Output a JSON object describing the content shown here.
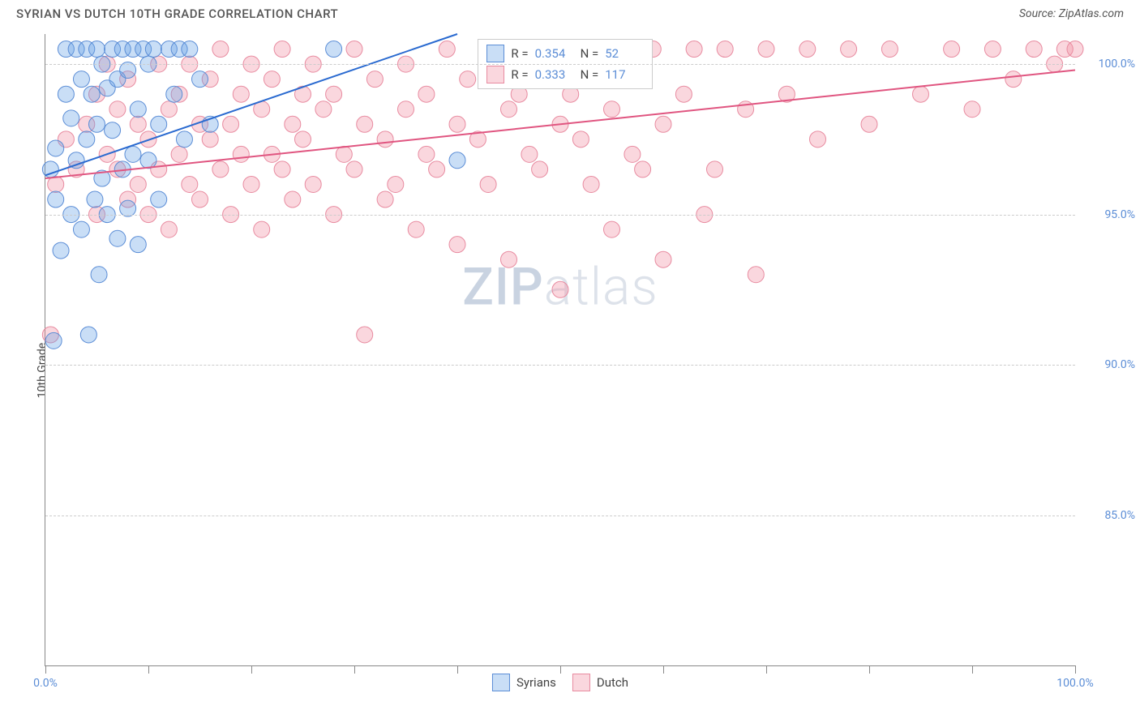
{
  "header": {
    "title": "SYRIAN VS DUTCH 10TH GRADE CORRELATION CHART",
    "source": "Source: ZipAtlas.com"
  },
  "watermark": {
    "zip": "ZIP",
    "atlas": "atlas"
  },
  "chart": {
    "type": "scatter",
    "ylabel": "10th Grade",
    "xlim": [
      0,
      100
    ],
    "ylim": [
      80,
      101
    ],
    "y_ticks": [
      85,
      90,
      95,
      100
    ],
    "y_tick_labels": [
      "85.0%",
      "90.0%",
      "95.0%",
      "100.0%"
    ],
    "x_tick_positions": [
      0,
      10,
      20,
      30,
      40,
      50,
      60,
      70,
      80,
      90,
      100
    ],
    "x_first_label": "0.0%",
    "x_last_label": "100.0%",
    "background_color": "#ffffff",
    "grid_color": "#cccccc",
    "axis_color": "#888888",
    "tick_label_color": "#5b8dd6",
    "series": {
      "syrians": {
        "label": "Syrians",
        "fill": "rgba(100,160,230,0.35)",
        "stroke": "#5b8dd6",
        "marker_radius": 10,
        "regression": {
          "x1": 0,
          "y1": 96.3,
          "x2": 40,
          "y2": 101,
          "color": "#2a6ad0",
          "width": 2
        },
        "stats": {
          "R": "0.354",
          "N": "52"
        },
        "points": [
          [
            0.5,
            96.5
          ],
          [
            1,
            97.2
          ],
          [
            1,
            95.5
          ],
          [
            1.5,
            93.8
          ],
          [
            2,
            99.0
          ],
          [
            2,
            100.5
          ],
          [
            2.5,
            98.2
          ],
          [
            2.5,
            95.0
          ],
          [
            3,
            100.5
          ],
          [
            3,
            96.8
          ],
          [
            3.5,
            94.5
          ],
          [
            3.5,
            99.5
          ],
          [
            4,
            100.5
          ],
          [
            4,
            97.5
          ],
          [
            4.2,
            91.0
          ],
          [
            4.5,
            99.0
          ],
          [
            4.8,
            95.5
          ],
          [
            5,
            100.5
          ],
          [
            5,
            98.0
          ],
          [
            5.2,
            93.0
          ],
          [
            5.5,
            96.2
          ],
          [
            5.5,
            100.0
          ],
          [
            6,
            99.2
          ],
          [
            6,
            95.0
          ],
          [
            6.5,
            100.5
          ],
          [
            6.5,
            97.8
          ],
          [
            7,
            99.5
          ],
          [
            7,
            94.2
          ],
          [
            7.5,
            100.5
          ],
          [
            7.5,
            96.5
          ],
          [
            8,
            95.2
          ],
          [
            8,
            99.8
          ],
          [
            8.5,
            100.5
          ],
          [
            8.5,
            97.0
          ],
          [
            9,
            98.5
          ],
          [
            9,
            94.0
          ],
          [
            9.5,
            100.5
          ],
          [
            10,
            100.0
          ],
          [
            10,
            96.8
          ],
          [
            10.5,
            100.5
          ],
          [
            11,
            98.0
          ],
          [
            11,
            95.5
          ],
          [
            12,
            100.5
          ],
          [
            12.5,
            99.0
          ],
          [
            13,
            100.5
          ],
          [
            13.5,
            97.5
          ],
          [
            14,
            100.5
          ],
          [
            15,
            99.5
          ],
          [
            16,
            98.0
          ],
          [
            28,
            100.5
          ],
          [
            40,
            96.8
          ],
          [
            0.8,
            90.8
          ]
        ]
      },
      "dutch": {
        "label": "Dutch",
        "fill": "rgba(240,140,160,0.35)",
        "stroke": "#e88ba0",
        "marker_radius": 10,
        "regression": {
          "x1": 0,
          "y1": 96.2,
          "x2": 100,
          "y2": 99.8,
          "color": "#e05580",
          "width": 2
        },
        "stats": {
          "R": "0.333",
          "N": "117"
        },
        "points": [
          [
            0.5,
            91.0
          ],
          [
            1,
            96.0
          ],
          [
            2,
            97.5
          ],
          [
            3,
            96.5
          ],
          [
            4,
            98.0
          ],
          [
            5,
            95.0
          ],
          [
            5,
            99.0
          ],
          [
            6,
            97.0
          ],
          [
            6,
            100.0
          ],
          [
            7,
            96.5
          ],
          [
            7,
            98.5
          ],
          [
            8,
            95.5
          ],
          [
            8,
            99.5
          ],
          [
            9,
            96.0
          ],
          [
            9,
            98.0
          ],
          [
            10,
            97.5
          ],
          [
            10,
            95.0
          ],
          [
            11,
            100.0
          ],
          [
            11,
            96.5
          ],
          [
            12,
            98.5
          ],
          [
            12,
            94.5
          ],
          [
            13,
            99.0
          ],
          [
            13,
            97.0
          ],
          [
            14,
            96.0
          ],
          [
            14,
            100.0
          ],
          [
            15,
            98.0
          ],
          [
            15,
            95.5
          ],
          [
            16,
            97.5
          ],
          [
            16,
            99.5
          ],
          [
            17,
            96.5
          ],
          [
            17,
            100.5
          ],
          [
            18,
            98.0
          ],
          [
            18,
            95.0
          ],
          [
            19,
            99.0
          ],
          [
            19,
            97.0
          ],
          [
            20,
            96.0
          ],
          [
            20,
            100.0
          ],
          [
            21,
            98.5
          ],
          [
            21,
            94.5
          ],
          [
            22,
            99.5
          ],
          [
            22,
            97.0
          ],
          [
            23,
            96.5
          ],
          [
            23,
            100.5
          ],
          [
            24,
            98.0
          ],
          [
            24,
            95.5
          ],
          [
            25,
            99.0
          ],
          [
            25,
            97.5
          ],
          [
            26,
            96.0
          ],
          [
            26,
            100.0
          ],
          [
            27,
            98.5
          ],
          [
            28,
            95.0
          ],
          [
            28,
            99.0
          ],
          [
            29,
            97.0
          ],
          [
            30,
            96.5
          ],
          [
            30,
            100.5
          ],
          [
            31,
            98.0
          ],
          [
            31,
            91.0
          ],
          [
            32,
            99.5
          ],
          [
            33,
            97.5
          ],
          [
            33,
            95.5
          ],
          [
            34,
            96.0
          ],
          [
            35,
            100.0
          ],
          [
            35,
            98.5
          ],
          [
            36,
            94.5
          ],
          [
            37,
            99.0
          ],
          [
            37,
            97.0
          ],
          [
            38,
            96.5
          ],
          [
            39,
            100.5
          ],
          [
            40,
            98.0
          ],
          [
            40,
            94.0
          ],
          [
            41,
            99.5
          ],
          [
            42,
            97.5
          ],
          [
            43,
            96.0
          ],
          [
            44,
            100.0
          ],
          [
            45,
            98.5
          ],
          [
            45,
            93.5
          ],
          [
            46,
            99.0
          ],
          [
            47,
            97.0
          ],
          [
            48,
            96.5
          ],
          [
            49,
            100.5
          ],
          [
            50,
            98.0
          ],
          [
            50,
            92.5
          ],
          [
            51,
            99.0
          ],
          [
            52,
            97.5
          ],
          [
            53,
            96.0
          ],
          [
            54,
            100.5
          ],
          [
            55,
            98.5
          ],
          [
            55,
            94.5
          ],
          [
            56,
            99.5
          ],
          [
            57,
            97.0
          ],
          [
            58,
            96.5
          ],
          [
            59,
            100.5
          ],
          [
            60,
            98.0
          ],
          [
            60,
            93.5
          ],
          [
            62,
            99.0
          ],
          [
            63,
            100.5
          ],
          [
            64,
            95.0
          ],
          [
            65,
            96.5
          ],
          [
            66,
            100.5
          ],
          [
            68,
            98.5
          ],
          [
            69,
            93.0
          ],
          [
            70,
            100.5
          ],
          [
            72,
            99.0
          ],
          [
            74,
            100.5
          ],
          [
            75,
            97.5
          ],
          [
            78,
            100.5
          ],
          [
            80,
            98.0
          ],
          [
            82,
            100.5
          ],
          [
            85,
            99.0
          ],
          [
            88,
            100.5
          ],
          [
            90,
            98.5
          ],
          [
            92,
            100.5
          ],
          [
            94,
            99.5
          ],
          [
            96,
            100.5
          ],
          [
            98,
            100.0
          ],
          [
            99,
            100.5
          ],
          [
            100,
            100.5
          ]
        ]
      }
    },
    "stats_legend_labels": {
      "r": "R =",
      "n": "N ="
    },
    "bottom_legend": [
      "Syrians",
      "Dutch"
    ]
  }
}
